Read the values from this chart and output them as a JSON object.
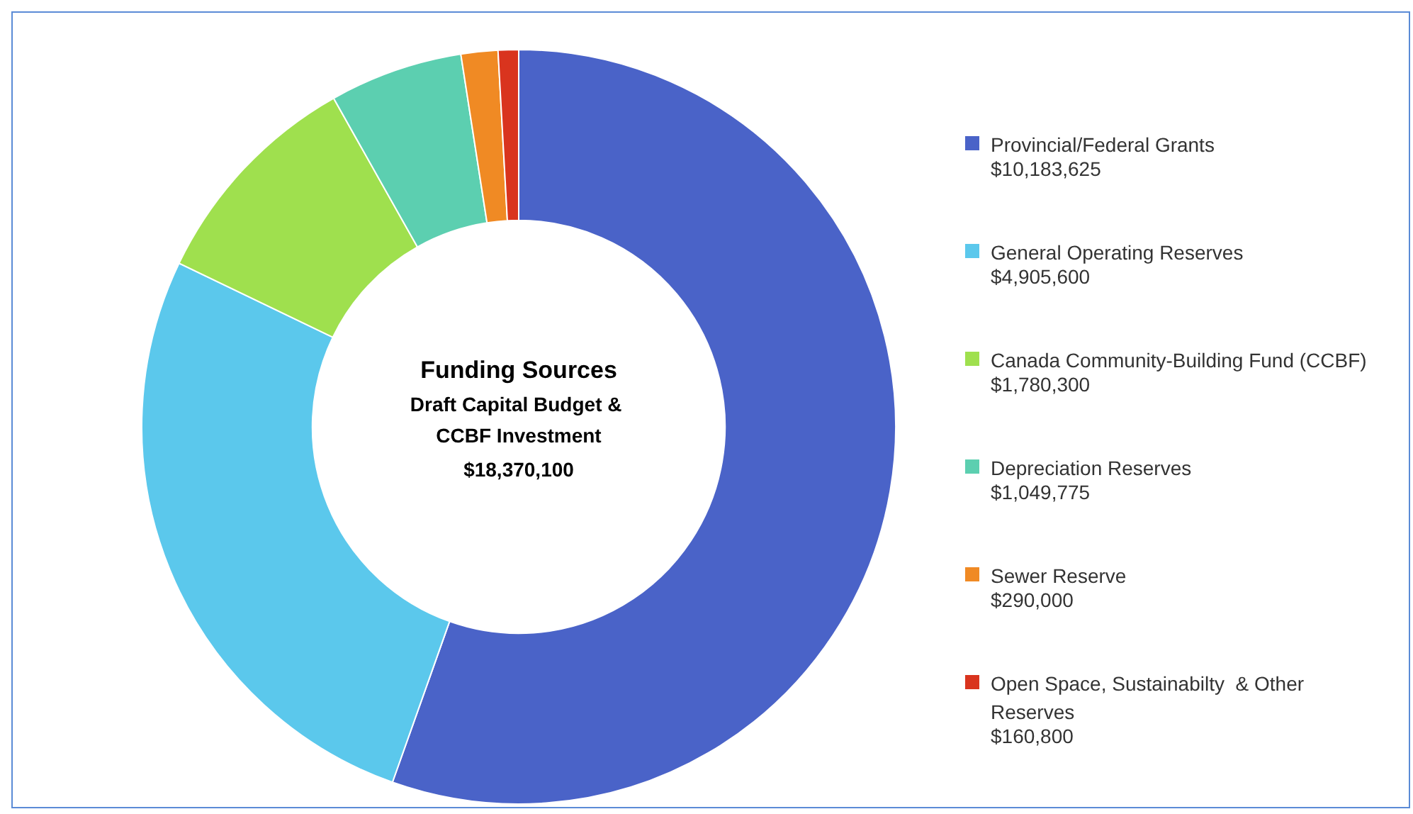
{
  "chart_data": {
    "type": "donut",
    "title": "Funding Sources",
    "subtitle": "Draft Capital Budget & CCBF Investment",
    "annotations": [
      "$18,370,100"
    ],
    "categories": [
      "Provincial/Federal Grants",
      "General Operating Reserves",
      "Canada Community-Building Fund (CCBF)",
      "Depreciation Reserves",
      "Sewer Reserve",
      "Open Space, Sustainabilty  & Other Reserves"
    ],
    "values": [
      10183625,
      4905600,
      1780300,
      1049775,
      290000,
      160800
    ],
    "value_labels": [
      "$10,183,625",
      "$4,905,600",
      "$1,780,300",
      "$1,049,775",
      "$290,000",
      "$160,800"
    ],
    "colors": [
      "#4a63c8",
      "#5bc8ec",
      "#9fe04e",
      "#5ccfb0",
      "#f08a24",
      "#d9341e"
    ],
    "legend": "right"
  }
}
